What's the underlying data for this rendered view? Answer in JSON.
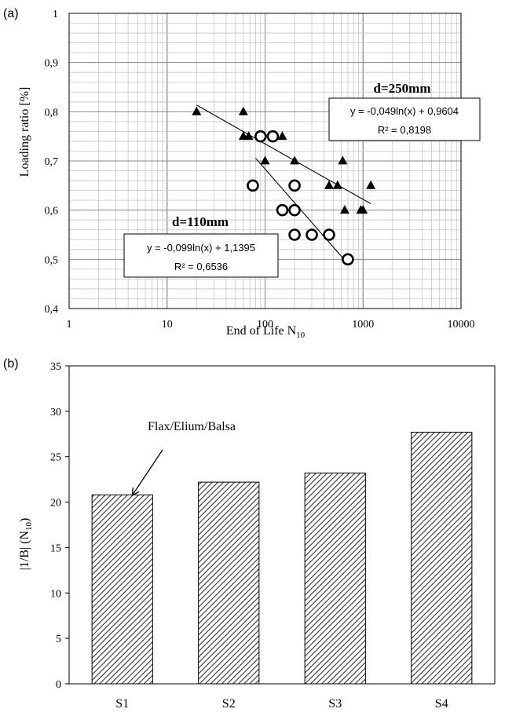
{
  "chart_data": [
    {
      "panel_label": "(a)",
      "type": "scatter",
      "xlabel": "End of Life N",
      "xlabel_sub": "10",
      "ylabel": "Loading ratio [%]",
      "xscale": "log",
      "xlim": [
        1,
        10000
      ],
      "ylim": [
        0.4,
        1.0
      ],
      "x_ticks": [
        {
          "value": 1,
          "label": "1"
        },
        {
          "value": 10,
          "label": "10"
        },
        {
          "value": 100,
          "label": "100"
        },
        {
          "value": 1000,
          "label": "1000"
        },
        {
          "value": 10000,
          "label": "10000"
        }
      ],
      "y_ticks": [
        {
          "value": 0.4,
          "label": "0,4"
        },
        {
          "value": 0.5,
          "label": "0,5"
        },
        {
          "value": 0.6,
          "label": "0,6"
        },
        {
          "value": 0.7,
          "label": "0,7"
        },
        {
          "value": 0.8,
          "label": "0,8"
        },
        {
          "value": 0.9,
          "label": "0,9"
        },
        {
          "value": 1.0,
          "label": "1"
        }
      ],
      "grid": true,
      "series": [
        {
          "name": "d=250mm",
          "marker": "triangle",
          "color": "#000000",
          "points": [
            [
              20,
              0.8
            ],
            [
              60,
              0.8
            ],
            [
              60,
              0.75
            ],
            [
              68,
              0.75
            ],
            [
              100,
              0.7
            ],
            [
              150,
              0.75
            ],
            [
              200,
              0.7
            ],
            [
              450,
              0.65
            ],
            [
              550,
              0.65
            ],
            [
              620,
              0.7
            ],
            [
              650,
              0.6
            ],
            [
              950,
              0.6
            ],
            [
              1000,
              0.6
            ],
            [
              1200,
              0.65
            ]
          ],
          "fit": {
            "a": -0.049,
            "b": 0.9604,
            "x_range": [
              20,
              1200
            ]
          },
          "equation": "y = -0,049ln(x) + 0,9604",
          "r2": "R² = 0,8198"
        },
        {
          "name": "d=110mm",
          "marker": "circle",
          "color": "#000000",
          "points": [
            [
              75,
              0.65
            ],
            [
              90,
              0.75
            ],
            [
              120,
              0.75
            ],
            [
              150,
              0.6
            ],
            [
              200,
              0.65
            ],
            [
              200,
              0.6
            ],
            [
              200,
              0.55
            ],
            [
              300,
              0.55
            ],
            [
              450,
              0.55
            ],
            [
              700,
              0.5
            ]
          ],
          "fit": {
            "a": -0.099,
            "b": 1.1395,
            "x_range": [
              80,
              700
            ]
          },
          "equation": "y = -0,099ln(x) + 1,1395",
          "r2": "R² = 0,6536"
        }
      ]
    },
    {
      "panel_label": "(b)",
      "type": "bar",
      "ylabel": "|1/B| (N",
      "ylabel_sub": "10",
      "ylabel_end": ")",
      "ylim": [
        0,
        35
      ],
      "y_ticks": [
        0,
        5,
        10,
        15,
        20,
        25,
        30,
        35
      ],
      "categories": [
        "S1",
        "S2",
        "S3",
        "S4"
      ],
      "values": [
        20.8,
        22.2,
        23.2,
        27.7
      ],
      "fill": "hatched",
      "annotation": {
        "text": "Flax/Elium/Balsa",
        "target_category": "S1"
      }
    }
  ]
}
